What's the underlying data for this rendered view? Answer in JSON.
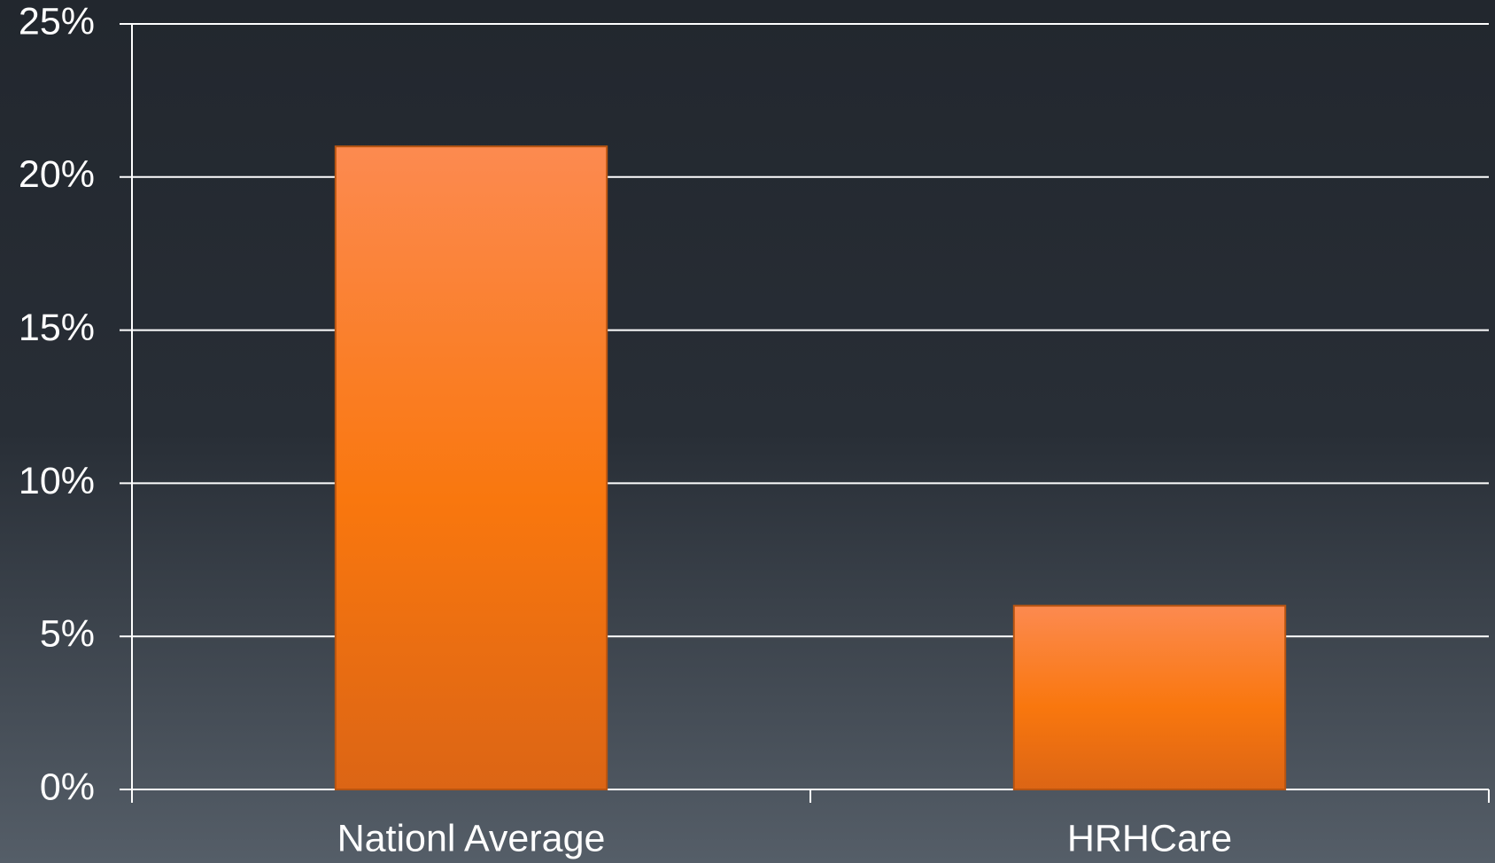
{
  "chart_data": {
    "type": "bar",
    "categories": [
      "Nationl Average",
      "HRHCare"
    ],
    "values": [
      21,
      6
    ],
    "color": "#f97a10",
    "ylim": [
      0,
      25
    ],
    "yticks": [
      {
        "value": 0,
        "label": "0%"
      },
      {
        "value": 5,
        "label": "5%"
      },
      {
        "value": 10,
        "label": "10%"
      },
      {
        "value": 15,
        "label": "15%"
      },
      {
        "value": 20,
        "label": "20%"
      },
      {
        "value": 25,
        "label": "25%"
      }
    ],
    "grid": true
  }
}
